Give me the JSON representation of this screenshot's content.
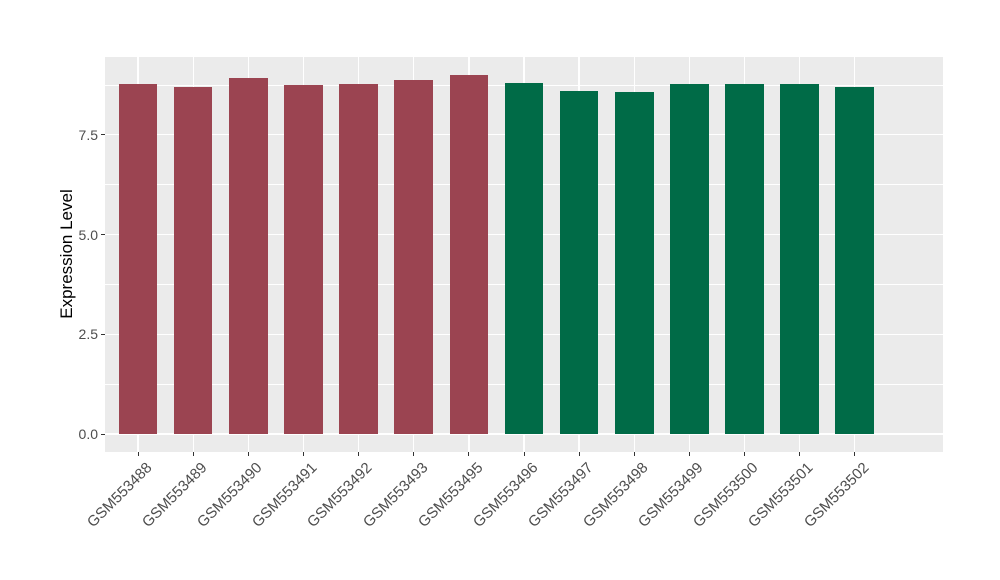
{
  "chart_data": {
    "type": "bar",
    "title": "",
    "xlabel": "",
    "ylabel": "Expression Level",
    "categories": [
      "GSM553488",
      "GSM553489",
      "GSM553490",
      "GSM553491",
      "GSM553492",
      "GSM553493",
      "GSM553495",
      "GSM553496",
      "GSM553497",
      "GSM553498",
      "GSM553499",
      "GSM553500",
      "GSM553501",
      "GSM553502"
    ],
    "values": [
      8.78,
      8.7,
      8.93,
      8.75,
      8.77,
      8.87,
      9.01,
      8.79,
      8.6,
      8.58,
      8.77,
      8.77,
      8.77,
      8.7
    ],
    "bar_colors": [
      "#9B4451",
      "#9B4451",
      "#9B4451",
      "#9B4451",
      "#9B4451",
      "#9B4451",
      "#9B4451",
      "#006B47",
      "#006B47",
      "#006B47",
      "#006B47",
      "#006B47",
      "#006B47",
      "#006B47"
    ],
    "bar_width_ratio": 0.7,
    "y_axis": {
      "ticks": [
        {
          "value": 0,
          "label": "0.0"
        },
        {
          "value": 2.5,
          "label": "2.5"
        },
        {
          "value": 5,
          "label": "5.0"
        },
        {
          "value": 7.5,
          "label": "7.5"
        }
      ],
      "minor_ticks": [
        1.25,
        3.75,
        6.25,
        8.75
      ],
      "ylim": [
        -0.45,
        9.45
      ]
    },
    "x_axis": {
      "label_angle_deg": 45
    },
    "style": {
      "background": "#FFFFFF",
      "panel_bg": "#EBEBEB",
      "grid_color": "#FFFFFF",
      "axis_text_color": "#4D4D4D",
      "axis_title_color": "#000000",
      "tick_mark_color": "#333333"
    },
    "legend": null
  }
}
